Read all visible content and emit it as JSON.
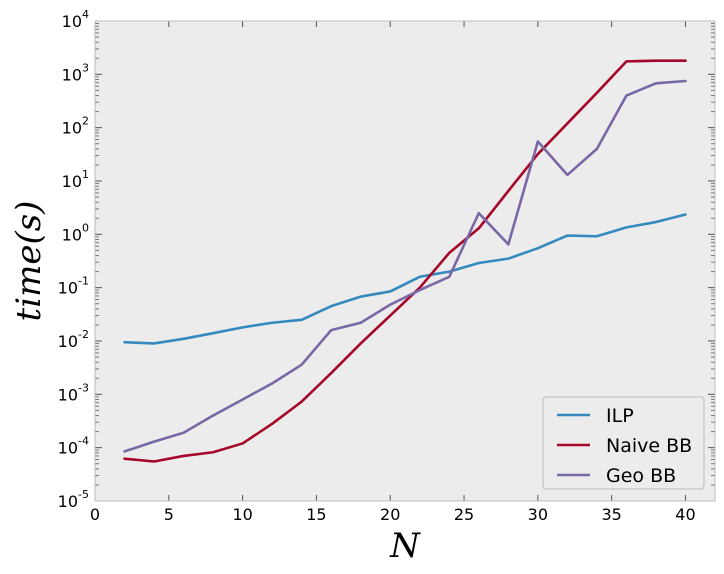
{
  "chart_data": {
    "type": "line",
    "xlabel": "N",
    "ylabel": "time(s)",
    "ylog": true,
    "xlim": [
      0,
      42
    ],
    "ylim": [
      1e-05,
      10000.0
    ],
    "xticks": [
      0,
      5,
      10,
      15,
      20,
      25,
      30,
      35,
      40
    ],
    "yticks": [
      {
        "base": "10",
        "exp": "-5",
        "value": 1e-05
      },
      {
        "base": "10",
        "exp": "-4",
        "value": 0.0001
      },
      {
        "base": "10",
        "exp": "-3",
        "value": 0.001
      },
      {
        "base": "10",
        "exp": "-2",
        "value": 0.01
      },
      {
        "base": "10",
        "exp": "-1",
        "value": 0.1
      },
      {
        "base": "10",
        "exp": "0",
        "value": 1
      },
      {
        "base": "10",
        "exp": "1",
        "value": 10
      },
      {
        "base": "10",
        "exp": "2",
        "value": 100
      },
      {
        "base": "10",
        "exp": "3",
        "value": 1000
      },
      {
        "base": "10",
        "exp": "4",
        "value": 10000
      }
    ],
    "grid": false,
    "legend_position": "bottom-right",
    "background": "#ececec",
    "x": [
      2,
      4,
      6,
      8,
      10,
      12,
      14,
      16,
      18,
      20,
      22,
      24,
      26,
      28,
      30,
      32,
      34,
      36,
      38,
      40
    ],
    "series": [
      {
        "name": "ILP",
        "color": "#348abd",
        "values": [
          0.0095,
          0.009,
          0.011,
          0.014,
          0.018,
          0.022,
          0.025,
          0.045,
          0.068,
          0.085,
          0.16,
          0.2,
          0.29,
          0.35,
          0.55,
          0.95,
          0.92,
          1.35,
          1.7,
          2.35
        ]
      },
      {
        "name": "Naive BB",
        "color": "#a60628",
        "values": [
          6.2e-05,
          5.5e-05,
          7e-05,
          8.2e-05,
          0.00012,
          0.00028,
          0.00073,
          0.0025,
          0.009,
          0.03,
          0.1,
          0.45,
          1.3,
          6.5,
          32,
          120,
          450,
          1750,
          1800,
          1800
        ]
      },
      {
        "name": "Geo BB",
        "color": "#7a68a6",
        "values": [
          8.5e-05,
          0.00013,
          0.00019,
          0.0004,
          0.0008,
          0.0016,
          0.0036,
          0.016,
          0.022,
          0.048,
          0.09,
          0.16,
          2.5,
          0.65,
          55,
          13,
          40,
          400,
          680,
          750
        ]
      }
    ]
  }
}
